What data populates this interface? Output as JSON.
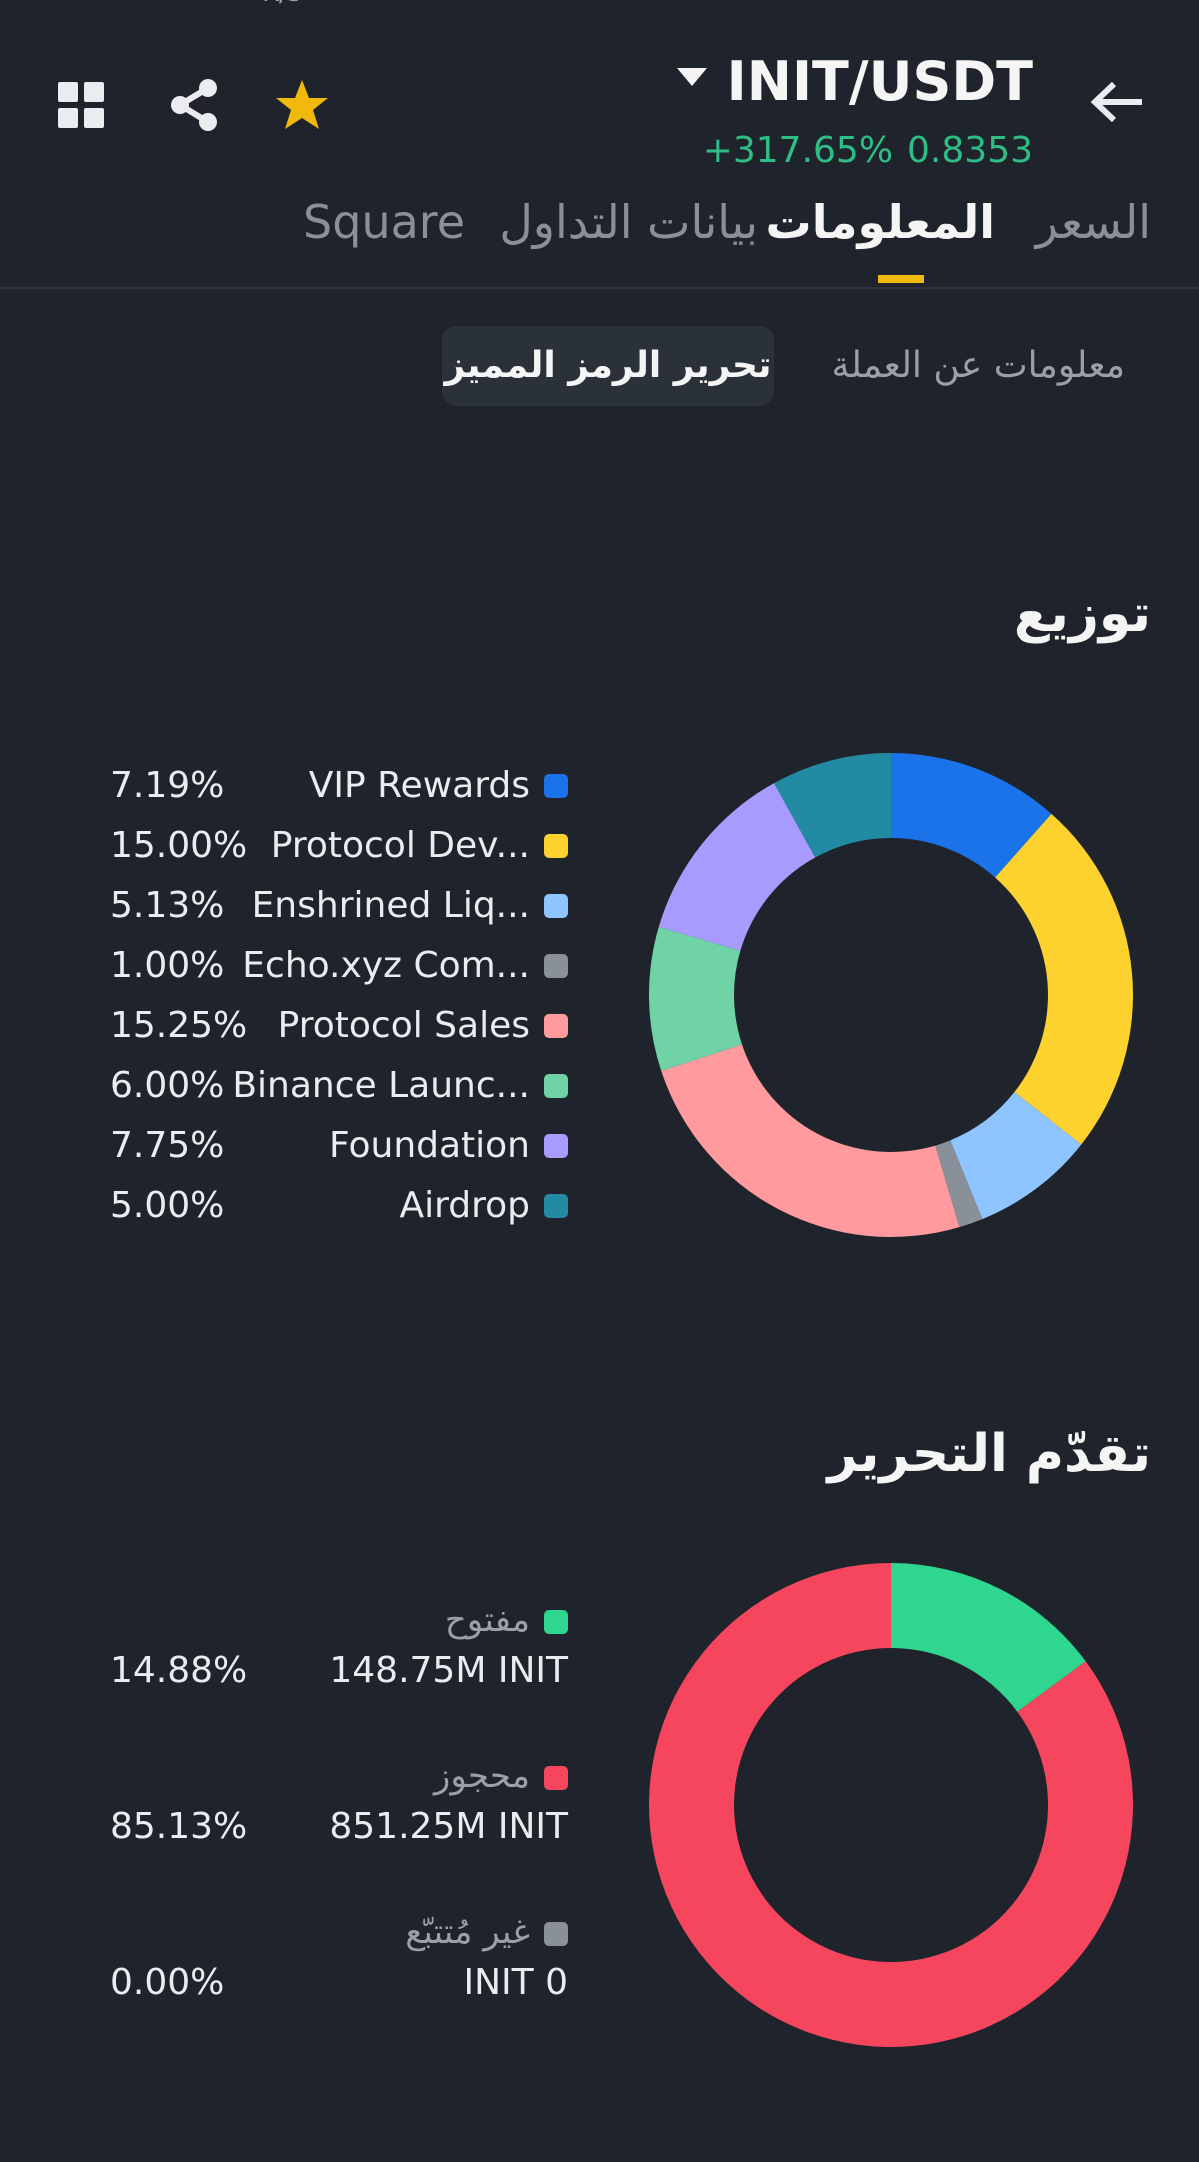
{
  "header": {
    "pair": "INIT/USDT",
    "change": "+317.65%",
    "price": "0.8353",
    "top_partial": "K/s"
  },
  "icons": {
    "back": "arrow-left-icon",
    "dropdown": "caret-down-icon",
    "favorite": "star-icon",
    "share": "share-icon",
    "grid": "grid-icon"
  },
  "tabs": [
    "السعر",
    "المعلومات",
    "بيانات التداول",
    "Square"
  ],
  "active_tab": 1,
  "subtabs": {
    "coin_info": "معلومات عن العملة",
    "token_unlock": "تحرير الرمز المميز"
  },
  "colors": {
    "accent": "#f0b90b",
    "positive": "#2ebd85",
    "background": "#1f232b"
  },
  "distribution": {
    "title": "توزيع",
    "legend": [
      {
        "name": "VIP Rewards",
        "pct": "7.19%",
        "color": "#1a73e8"
      },
      {
        "name": "Protocol Dev...",
        "pct": "15.00%",
        "color": "#fdd22f"
      },
      {
        "name": "Enshrined Liq...",
        "pct": "5.13%",
        "color": "#8ec5ff"
      },
      {
        "name": "Echo.xyz Com...",
        "pct": "1.00%",
        "color": "#8a909a"
      },
      {
        "name": "Protocol Sales",
        "pct": "15.25%",
        "color": "#ff9a9e"
      },
      {
        "name": "Binance Launc...",
        "pct": "6.00%",
        "color": "#6fd3a5"
      },
      {
        "name": "Foundation",
        "pct": "7.75%",
        "color": "#a89bff"
      },
      {
        "name": "Airdrop",
        "pct": "5.00%",
        "color": "#228ba3"
      }
    ]
  },
  "chart_data": [
    {
      "type": "pie",
      "title": "توزيع",
      "categories": [
        "VIP Rewards",
        "Protocol Dev...",
        "Enshrined Liq...",
        "Echo.xyz Com...",
        "Protocol Sales",
        "Binance Launc...",
        "Foundation",
        "Airdrop"
      ],
      "values": [
        7.19,
        15.0,
        5.13,
        1.0,
        15.25,
        6.0,
        7.75,
        5.0
      ],
      "colors": [
        "#1a73e8",
        "#fdd22f",
        "#8ec5ff",
        "#8a909a",
        "#ff9a9e",
        "#6fd3a5",
        "#a89bff",
        "#228ba3"
      ]
    },
    {
      "type": "pie",
      "title": "تقدّم التحرير",
      "categories": [
        "مفتوح",
        "محجوز",
        "غير مُتتبّع"
      ],
      "values": [
        14.88,
        85.13,
        0.0
      ],
      "colors": [
        "#2fd68f",
        "#f6465d",
        "#8a909a"
      ]
    }
  ],
  "unlock": {
    "title": "تقدّم التحرير",
    "items": [
      {
        "status": "مفتوح",
        "amount": "148.75M INIT",
        "pct": "14.88%",
        "color": "#2fd68f"
      },
      {
        "status": "محجوز",
        "amount": "851.25M INIT",
        "pct": "85.13%",
        "color": "#f6465d"
      },
      {
        "status": "غير مُتتبّع",
        "amount": "INIT 0",
        "pct": "0.00%",
        "color": "#8a909a"
      }
    ]
  }
}
